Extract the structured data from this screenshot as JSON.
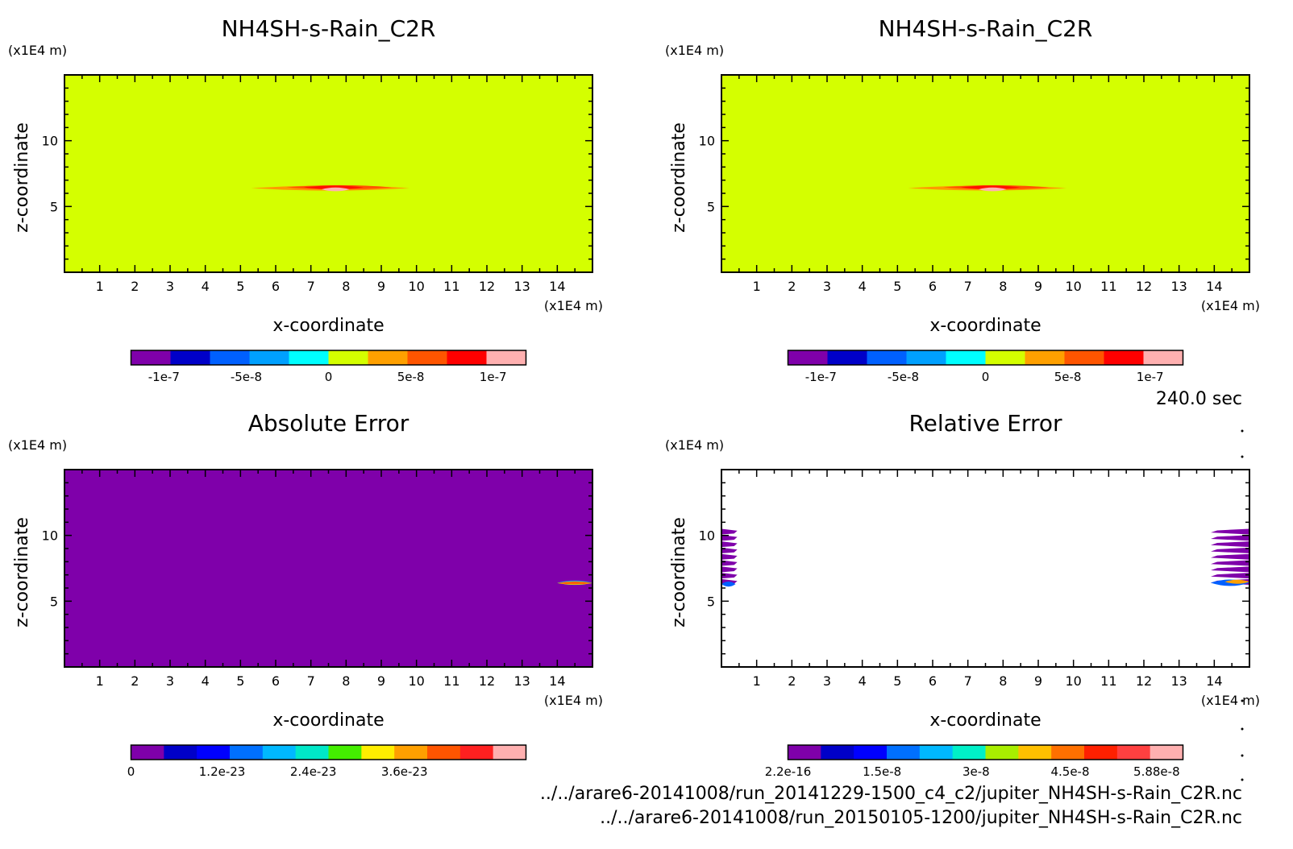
{
  "figure": {
    "time_label": "240.0 sec",
    "files": [
      "../../arare6-20141008/run_20141229-1500_c4_c2/jupiter_NH4SH-s-Rain_C2R.nc",
      "../../arare6-20141008/run_20150105-1200/jupiter_NH4SH-s-Rain_C2R.nc"
    ]
  },
  "chart_data": [
    {
      "type": "heatmap",
      "title": "NH4SH-s-Rain_C2R",
      "xlabel": "x-coordinate",
      "ylabel": "z-coordinate",
      "x_unit": "(x1E4 m)",
      "y_unit": "(x1E4 m)",
      "xlim": [
        0,
        15
      ],
      "ylim": [
        0,
        15
      ],
      "xticks": [
        1,
        2,
        3,
        4,
        5,
        6,
        7,
        8,
        9,
        10,
        11,
        12,
        13,
        14
      ],
      "yticks": [
        5,
        10
      ],
      "background": "#d4ff00",
      "features": [
        {
          "kind": "layer",
          "x": [
            5.3,
            9.8
          ],
          "z": [
            6.2,
            6.6
          ],
          "color": "#ff9900"
        },
        {
          "kind": "layer",
          "x": [
            6.3,
            9.3
          ],
          "z": [
            6.3,
            6.6
          ],
          "color": "#ff5500"
        },
        {
          "kind": "layer",
          "x": [
            6.8,
            8.5
          ],
          "z": [
            6.35,
            6.55
          ],
          "color": "#ff1100"
        },
        {
          "kind": "layer",
          "x": [
            7.3,
            8.1
          ],
          "z": [
            6.2,
            6.4
          ],
          "color": "#ffb0b0"
        }
      ],
      "colorbar": {
        "colors": [
          "#7f00aa",
          "#0000c8",
          "#0060ff",
          "#00a0ff",
          "#00ffff",
          "#d4ff00",
          "#ffa000",
          "#ff5500",
          "#ff0000",
          "#ffb0b0"
        ],
        "tick_labels": [
          "-1e-7",
          "-5e-8",
          "0",
          "5e-8",
          "1e-7"
        ],
        "tick_values": [
          -1e-07,
          -5e-08,
          0,
          5e-08,
          1e-07
        ],
        "range": [
          -1.2e-07,
          1.2e-07
        ]
      }
    },
    {
      "type": "heatmap",
      "title": "NH4SH-s-Rain_C2R",
      "xlabel": "x-coordinate",
      "ylabel": "z-coordinate",
      "x_unit": "(x1E4 m)",
      "y_unit": "(x1E4 m)",
      "xlim": [
        0,
        15
      ],
      "ylim": [
        0,
        15
      ],
      "xticks": [
        1,
        2,
        3,
        4,
        5,
        6,
        7,
        8,
        9,
        10,
        11,
        12,
        13,
        14
      ],
      "yticks": [
        5,
        10
      ],
      "background": "#d4ff00",
      "features": [
        {
          "kind": "layer",
          "x": [
            5.3,
            9.8
          ],
          "z": [
            6.2,
            6.6
          ],
          "color": "#ff9900"
        },
        {
          "kind": "layer",
          "x": [
            6.3,
            9.3
          ],
          "z": [
            6.3,
            6.6
          ],
          "color": "#ff5500"
        },
        {
          "kind": "layer",
          "x": [
            6.8,
            8.5
          ],
          "z": [
            6.35,
            6.55
          ],
          "color": "#ff1100"
        },
        {
          "kind": "layer",
          "x": [
            7.3,
            8.1
          ],
          "z": [
            6.2,
            6.4
          ],
          "color": "#ffb0b0"
        }
      ],
      "colorbar": {
        "colors": [
          "#7f00aa",
          "#0000c8",
          "#0060ff",
          "#00a0ff",
          "#00ffff",
          "#d4ff00",
          "#ffa000",
          "#ff5500",
          "#ff0000",
          "#ffb0b0"
        ],
        "tick_labels": [
          "-1e-7",
          "-5e-8",
          "0",
          "5e-8",
          "1e-7"
        ],
        "tick_values": [
          -1e-07,
          -5e-08,
          0,
          5e-08,
          1e-07
        ],
        "range": [
          -1.2e-07,
          1.2e-07
        ]
      }
    },
    {
      "type": "heatmap",
      "title": "Absolute Error",
      "xlabel": "x-coordinate",
      "ylabel": "z-coordinate",
      "x_unit": "(x1E4 m)",
      "y_unit": "(x1E4 m)",
      "xlim": [
        0,
        15
      ],
      "ylim": [
        0,
        15
      ],
      "xticks": [
        1,
        2,
        3,
        4,
        5,
        6,
        7,
        8,
        9,
        10,
        11,
        12,
        13,
        14
      ],
      "yticks": [
        5,
        10
      ],
      "background": "#7f00aa",
      "features": [
        {
          "kind": "layer",
          "x": [
            14.0,
            15.0
          ],
          "z": [
            6.25,
            6.55
          ],
          "color": "#00a0ff"
        },
        {
          "kind": "layer",
          "x": [
            14.0,
            15.0
          ],
          "z": [
            6.3,
            6.45
          ],
          "color": "#e0ff00"
        },
        {
          "kind": "layer",
          "x": [
            14.0,
            15.0
          ],
          "z": [
            6.35,
            6.42
          ],
          "color": "#ff6000"
        }
      ],
      "colorbar": {
        "colors": [
          "#7f00aa",
          "#0000c8",
          "#0000ff",
          "#0070ff",
          "#00b8ff",
          "#00e8c8",
          "#44ee00",
          "#ffee00",
          "#ffa000",
          "#ff5500",
          "#ff2020",
          "#ffb0b0"
        ],
        "tick_labels": [
          "0",
          "1.2e-23",
          "2.4e-23",
          "3.6e-23"
        ],
        "tick_values": [
          0,
          1.2e-23,
          2.4e-23,
          3.6e-23
        ],
        "range": [
          0,
          5.2e-23
        ]
      }
    },
    {
      "type": "heatmap",
      "title": "Relative Error",
      "xlabel": "x-coordinate",
      "ylabel": "z-coordinate",
      "x_unit": "(x1E4 m)",
      "y_unit": "(x1E4 m)",
      "xlim": [
        0,
        15
      ],
      "ylim": [
        0,
        15
      ],
      "xticks": [
        1,
        2,
        3,
        4,
        5,
        6,
        7,
        8,
        9,
        10,
        11,
        12,
        13,
        14
      ],
      "yticks": [
        5,
        10
      ],
      "background": "#ffffff",
      "features": [
        {
          "kind": "stripes",
          "x": [
            0,
            0.45
          ],
          "z": [
            6.2,
            10.5
          ],
          "count": 9,
          "color": "#7f00aa"
        },
        {
          "kind": "layer",
          "x": [
            0,
            0.4
          ],
          "z": [
            6.1,
            6.5
          ],
          "color": "#0060ff"
        },
        {
          "kind": "stripes",
          "x": [
            13.9,
            15.0
          ],
          "z": [
            6.2,
            10.5
          ],
          "count": 9,
          "color": "#7f00aa"
        },
        {
          "kind": "layer",
          "x": [
            13.9,
            15.0
          ],
          "z": [
            6.1,
            6.7
          ],
          "color": "#0060ff"
        },
        {
          "kind": "layer",
          "x": [
            14.3,
            15.0
          ],
          "z": [
            6.35,
            6.6
          ],
          "color": "#ffa000"
        }
      ],
      "colorbar": {
        "colors": [
          "#7f00aa",
          "#0000c8",
          "#0000ff",
          "#0070ff",
          "#00b8ff",
          "#00f0c8",
          "#a8ee00",
          "#ffc000",
          "#ff7000",
          "#ff2000",
          "#ff4040",
          "#ffb0b0"
        ],
        "tick_labels": [
          "2.2e-16",
          "1.5e-8",
          "3e-8",
          "4.5e-8",
          "5.88e-8"
        ],
        "tick_values": [
          2.2e-16,
          1.5e-08,
          3e-08,
          4.5e-08,
          5.88e-08
        ],
        "range": [
          0,
          6.3e-08
        ]
      }
    }
  ]
}
